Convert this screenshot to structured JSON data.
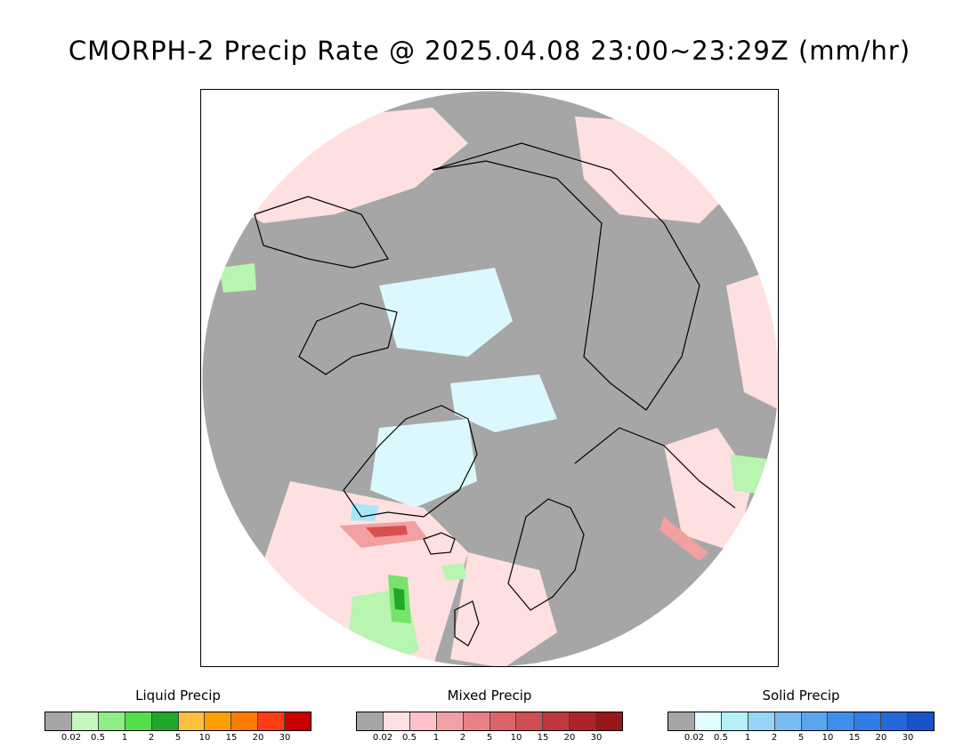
{
  "title": "CMORPH-2 Precip Rate @ 2025.04.08 23:00~23:29Z (mm/hr)",
  "map": {
    "background_color": "#a6a6a6",
    "coastline_color": "#000000",
    "colors": {
      "no_precip": "#a6a6a6",
      "mixed_light": "#ffe0e0",
      "mixed_mod": "#f2a0a0",
      "mixed_heavy": "#d65050",
      "liquid_light": "#b8f5b0",
      "liquid_mod": "#77e36c",
      "liquid_heavy": "#1fa82a",
      "solid_light": "#dcf8ff",
      "solid_mod": "#a8e6fa"
    }
  },
  "legends": [
    {
      "id": "liquid",
      "title": "Liquid Precip",
      "colors": [
        "#a6a6a6",
        "#c5f7bf",
        "#90ec86",
        "#52e04a",
        "#1fa82a",
        "#ffc040",
        "#ffa000",
        "#ff7a00",
        "#ff3c14",
        "#c80000"
      ],
      "tick_labels": [
        "0.02",
        "0.5",
        "1",
        "2",
        "5",
        "10",
        "15",
        "20",
        "30"
      ]
    },
    {
      "id": "mixed",
      "title": "Mixed Precip",
      "colors": [
        "#a6a6a6",
        "#ffe0e4",
        "#fcc2c8",
        "#f2a0a6",
        "#e88086",
        "#dc6468",
        "#d04e52",
        "#c0383c",
        "#ac2428",
        "#961818"
      ],
      "tick_labels": [
        "0.02",
        "0.5",
        "1",
        "2",
        "5",
        "10",
        "15",
        "20",
        "30"
      ]
    },
    {
      "id": "solid",
      "title": "Solid Precip",
      "colors": [
        "#a6a6a6",
        "#e0fdff",
        "#b4f0fa",
        "#96d4f8",
        "#78bcf2",
        "#5aa6ee",
        "#3c90ea",
        "#2e7ee6",
        "#2468dc",
        "#1a52c8"
      ],
      "tick_labels": [
        "0.02",
        "0.5",
        "1",
        "2",
        "5",
        "10",
        "15",
        "20",
        "30"
      ]
    }
  ]
}
